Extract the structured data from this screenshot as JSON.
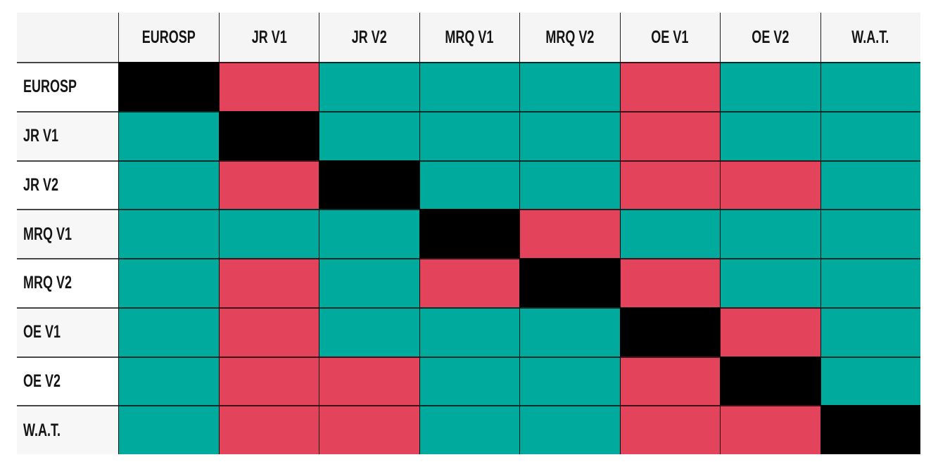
{
  "chart_data": {
    "type": "heatmap",
    "title": "",
    "columns": [
      "EUROSP",
      "JR V1",
      "JR V2",
      "MRQ V1",
      "MRQ V2",
      "OE V1",
      "OE V2",
      "W.A.T."
    ],
    "rows": [
      "EUROSP",
      "JR V1",
      "JR V2",
      "MRQ V1",
      "MRQ V2",
      "OE V1",
      "OE V2",
      "W.A.T."
    ],
    "cells": [
      [
        "black",
        "red",
        "teal",
        "teal",
        "teal",
        "red",
        "teal",
        "teal"
      ],
      [
        "teal",
        "black",
        "teal",
        "teal",
        "teal",
        "red",
        "teal",
        "teal"
      ],
      [
        "teal",
        "red",
        "black",
        "teal",
        "teal",
        "red",
        "red",
        "teal"
      ],
      [
        "teal",
        "teal",
        "teal",
        "black",
        "red",
        "teal",
        "teal",
        "teal"
      ],
      [
        "teal",
        "red",
        "teal",
        "red",
        "black",
        "red",
        "teal",
        "teal"
      ],
      [
        "teal",
        "red",
        "teal",
        "teal",
        "teal",
        "black",
        "red",
        "teal"
      ],
      [
        "teal",
        "red",
        "red",
        "teal",
        "teal",
        "red",
        "black",
        "teal"
      ],
      [
        "teal",
        "red",
        "red",
        "teal",
        "teal",
        "red",
        "red",
        "black"
      ]
    ],
    "palette": {
      "black": "#000000",
      "red": "#e4435c",
      "teal": "#00ab9e"
    },
    "layout": {
      "header_background": "#f5f5f5",
      "row_label_background": "#ffffff",
      "row_label_background_alt": "#f7f7f7",
      "grid_on": true,
      "legend": "none",
      "corner_label": ""
    }
  }
}
